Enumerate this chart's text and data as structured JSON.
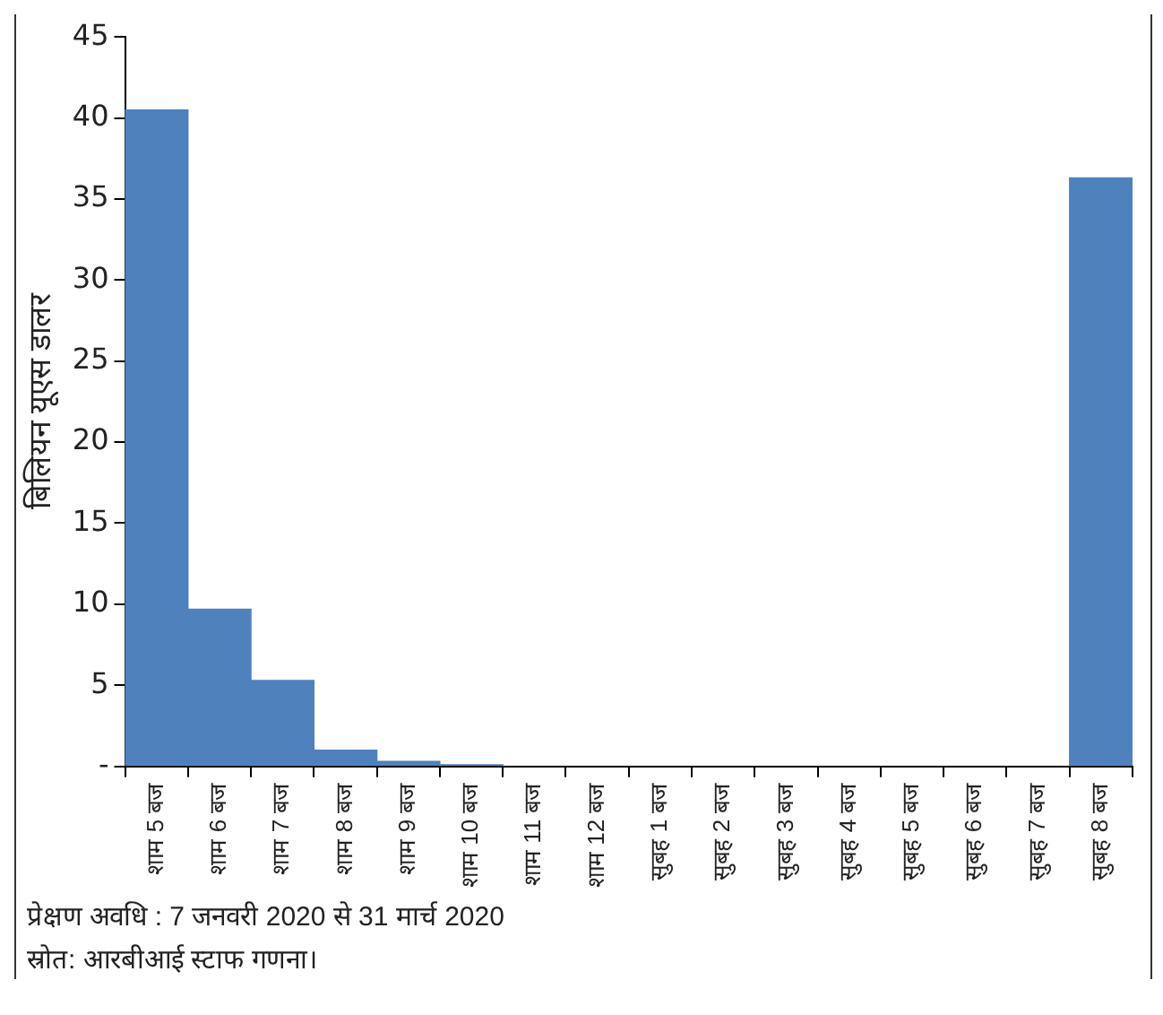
{
  "chart_data": {
    "type": "bar",
    "ylabel": "बिलियन यूएस डालर",
    "categories": [
      "शाम 5 बज",
      "शाम 6 बज",
      "शाम 7 बज",
      "शाम 8 बज",
      "शाम 9 बज",
      "शाम 10 बज",
      "शाम 11 बज",
      "शाम 12 बज",
      "सुबह 1 बज",
      "सुबह 2 बज",
      "सुबह 3 बज",
      "सुबह 4 बज",
      "सुबह 5 बज",
      "सुबह 6 बज",
      "सुबह 7 बज",
      "सुबह 8 बज"
    ],
    "values": [
      40.5,
      9.7,
      5.3,
      1.0,
      0.3,
      0.1,
      0,
      0,
      0,
      0,
      0,
      0,
      0,
      0,
      0,
      36.3
    ],
    "color": "#4f81bd",
    "ylim": [
      0,
      45
    ],
    "yticks": [
      {
        "value": 0,
        "label": "-"
      },
      5,
      10,
      15,
      20,
      25,
      30,
      35,
      40,
      45
    ],
    "grid": false,
    "legend": false,
    "annotations": [
      "प्रेक्षण अवधि : 7 जनवरी 2020 से 31 मार्च 2020",
      "स्रोत: आरबीआई स्टाफ गणना।"
    ]
  }
}
